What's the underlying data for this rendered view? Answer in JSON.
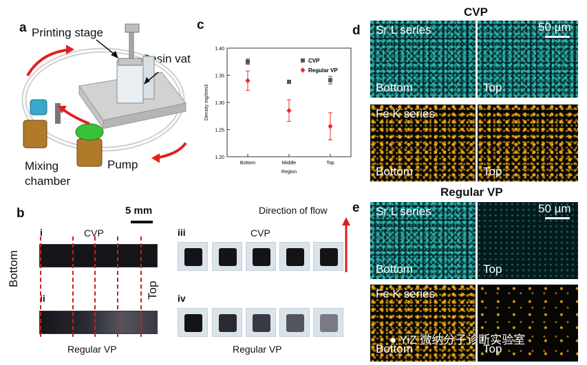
{
  "panel_a": {
    "letter": "a",
    "printing_stage": "Printing stage",
    "resin_vat": "Resin vat",
    "mixing_chamber_line1": "Mixing",
    "mixing_chamber_line2": "chamber",
    "pump": "Pump"
  },
  "panel_b": {
    "letter": "b",
    "scale": "5 mm",
    "direction": "Direction of flow",
    "bottom": "Bottom",
    "top": "Top",
    "i": "i",
    "ii": "ii",
    "iii": "iii",
    "iv": "iv",
    "cvp_left": "CVP",
    "cvp_right": "CVP",
    "regular_left": "Regular VP",
    "regular_right": "Regular VP"
  },
  "panel_c": {
    "letter": "c",
    "chart_data": {
      "type": "scatter",
      "categories": [
        "Bottom",
        "Middle",
        "Top"
      ],
      "xlabel": "Region",
      "ylabel": "Density mg/mm3",
      "ylim": [
        1.2,
        1.4
      ],
      "yticks": [
        "1.20",
        "1.25",
        "1.30",
        "1.35",
        "1.40"
      ],
      "legend_position": "top-right",
      "series": [
        {
          "name": "CVP",
          "color": "#555555",
          "marker": "square",
          "values": [
            1.375,
            1.338,
            1.341
          ],
          "errors": [
            0.005,
            0.002,
            0.007
          ]
        },
        {
          "name": "Regular VP",
          "color": "#e03030",
          "marker": "diamond",
          "values": [
            1.34,
            1.285,
            1.256
          ],
          "errors": [
            0.018,
            0.02,
            0.025
          ]
        }
      ]
    }
  },
  "panel_d": {
    "letter": "d",
    "title": "CVP",
    "scale": "50 µm",
    "sr": "Sr L series",
    "fe": "Fe K series",
    "bottom1": "Bottom",
    "top1": "Top",
    "bottom2": "Bottom",
    "top2": "Top"
  },
  "panel_e": {
    "letter": "e",
    "title": "Regular VP",
    "scale": "50 µm",
    "sr": "Sr L series",
    "fe": "Fe K series",
    "bottom1": "Bottom",
    "top1": "Top",
    "bottom2": "Bottom",
    "top2": "Top"
  },
  "watermark": "YiZ 微纳分子诊断实验室"
}
